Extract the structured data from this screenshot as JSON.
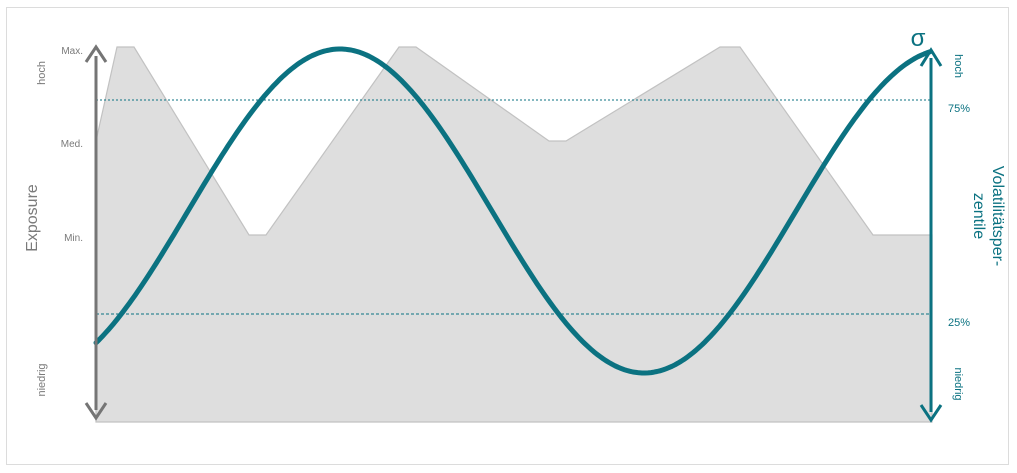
{
  "chart_data": {
    "type": "area",
    "left_axis": {
      "label": "Exposure",
      "end_labels": {
        "top": "hoch",
        "bottom": "niedrig"
      },
      "tick_labels": [
        "Max.",
        "Med.",
        "Min."
      ]
    },
    "right_axis": {
      "label_line1": "Volatilitätsper-",
      "label_line2": "zentile",
      "symbol": "σ",
      "end_labels": {
        "top": "hoch",
        "bottom": "niedrig"
      },
      "tick_labels": [
        "75%",
        "25%"
      ]
    },
    "series": [
      {
        "kind": "area",
        "levels": [
          "Med.",
          "Max.",
          "Max.",
          "Min.",
          "Min.",
          "Max.",
          "Max.",
          "Med.",
          "Med.",
          "Max.",
          "Max.",
          "Min."
        ]
      },
      {
        "kind": "line",
        "shape": "sine",
        "min_percentile": 10,
        "max_percentile": 100
      }
    ],
    "reference_lines": [
      {
        "value": "75%",
        "style": "dashed"
      },
      {
        "value": "25%",
        "style": "dashed"
      }
    ],
    "colors": {
      "area": "#dedede",
      "area_edge": "#c2c2c2",
      "exposure_axis": "#757575",
      "volatility": "#0b7281"
    }
  }
}
